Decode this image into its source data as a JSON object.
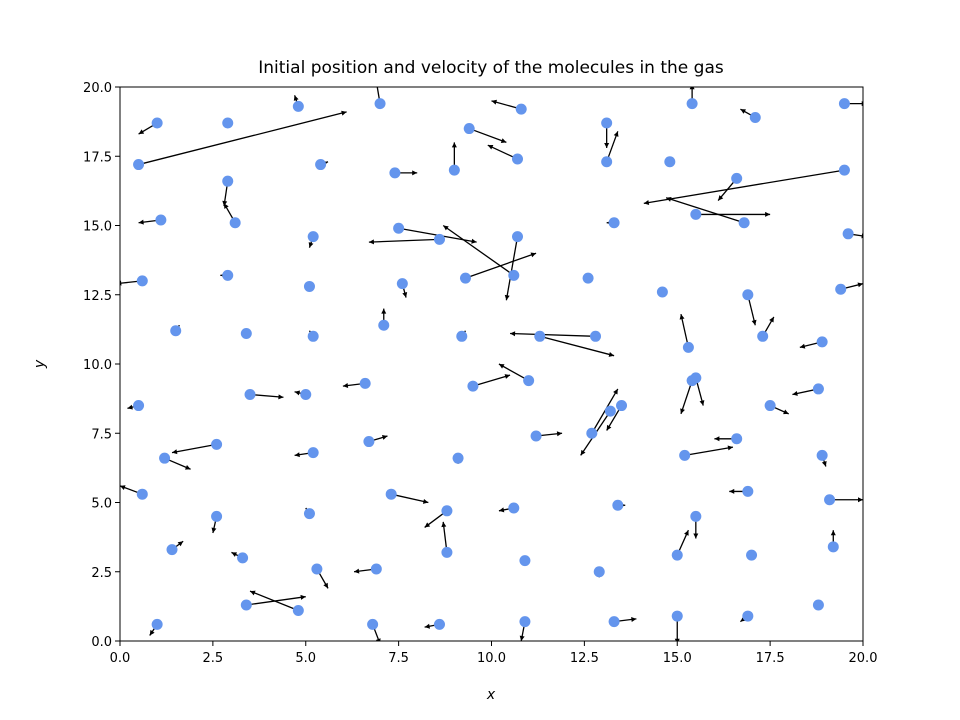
{
  "chart_data": {
    "type": "scatter",
    "title": "Initial position and velocity of the molecules in the gas",
    "xlabel": "x",
    "ylabel": "y",
    "xlim": [
      0,
      20
    ],
    "ylim": [
      0,
      20
    ],
    "xticks": [
      "0.0",
      "2.5",
      "5.0",
      "7.5",
      "10.0",
      "12.5",
      "15.0",
      "17.5",
      "20.0"
    ],
    "yticks": [
      "0.0",
      "2.5",
      "5.0",
      "7.5",
      "10.0",
      "12.5",
      "15.0",
      "17.5",
      "20.0"
    ],
    "grid": false,
    "point_color": "#6495ED",
    "arrow_color": "#000000",
    "points": [
      {
        "x": 1.0,
        "y": 18.7,
        "dx": -0.5,
        "dy": -0.4
      },
      {
        "x": 0.5,
        "y": 17.2,
        "dx": 5.6,
        "dy": 1.9
      },
      {
        "x": 2.9,
        "y": 18.7,
        "dx": -0.1,
        "dy": 0.1
      },
      {
        "x": 4.8,
        "y": 19.3,
        "dx": -0.1,
        "dy": 0.4
      },
      {
        "x": 7.0,
        "y": 19.4,
        "dx": -0.1,
        "dy": 0.8
      },
      {
        "x": 10.8,
        "y": 19.2,
        "dx": -0.8,
        "dy": 0.3
      },
      {
        "x": 13.1,
        "y": 18.7,
        "dx": 0.0,
        "dy": -0.9
      },
      {
        "x": 15.4,
        "y": 19.4,
        "dx": 0.0,
        "dy": 0.7
      },
      {
        "x": 17.1,
        "y": 18.9,
        "dx": -0.4,
        "dy": 0.3
      },
      {
        "x": 19.5,
        "y": 19.4,
        "dx": 0.6,
        "dy": 0.0
      },
      {
        "x": 5.4,
        "y": 17.2,
        "dx": 0.2,
        "dy": 0.1
      },
      {
        "x": 7.4,
        "y": 16.9,
        "dx": 0.6,
        "dy": 0.0
      },
      {
        "x": 9.0,
        "y": 17.0,
        "dx": 0.0,
        "dy": 1.0
      },
      {
        "x": 9.4,
        "y": 18.5,
        "dx": 1.0,
        "dy": -0.5
      },
      {
        "x": 10.7,
        "y": 17.4,
        "dx": -0.8,
        "dy": 0.5
      },
      {
        "x": 13.1,
        "y": 17.3,
        "dx": 0.3,
        "dy": 1.1
      },
      {
        "x": 14.8,
        "y": 17.3,
        "dx": -0.1,
        "dy": 0.1
      },
      {
        "x": 16.6,
        "y": 16.7,
        "dx": -0.5,
        "dy": -0.8
      },
      {
        "x": 19.5,
        "y": 17.0,
        "dx": -5.4,
        "dy": -1.2
      },
      {
        "x": 2.9,
        "y": 16.6,
        "dx": -0.1,
        "dy": -0.9
      },
      {
        "x": 3.1,
        "y": 15.1,
        "dx": -0.3,
        "dy": 0.7
      },
      {
        "x": 1.1,
        "y": 15.2,
        "dx": -0.6,
        "dy": -0.1
      },
      {
        "x": 5.2,
        "y": 14.6,
        "dx": -0.1,
        "dy": -0.4
      },
      {
        "x": 7.5,
        "y": 14.9,
        "dx": 2.1,
        "dy": -0.5
      },
      {
        "x": 8.6,
        "y": 14.5,
        "dx": -1.9,
        "dy": -0.1
      },
      {
        "x": 10.7,
        "y": 14.6,
        "dx": -0.3,
        "dy": -2.3
      },
      {
        "x": 10.6,
        "y": 13.2,
        "dx": -1.9,
        "dy": 1.8
      },
      {
        "x": 9.3,
        "y": 13.1,
        "dx": 1.9,
        "dy": 0.9
      },
      {
        "x": 13.3,
        "y": 15.1,
        "dx": -0.2,
        "dy": 0.0
      },
      {
        "x": 15.5,
        "y": 15.4,
        "dx": 2.0,
        "dy": 0.0
      },
      {
        "x": 16.8,
        "y": 15.1,
        "dx": -2.1,
        "dy": 0.9
      },
      {
        "x": 19.6,
        "y": 14.7,
        "dx": 0.5,
        "dy": -0.1
      },
      {
        "x": 0.6,
        "y": 13.0,
        "dx": -0.7,
        "dy": -0.1
      },
      {
        "x": 2.9,
        "y": 13.2,
        "dx": -0.2,
        "dy": 0.0
      },
      {
        "x": 5.1,
        "y": 12.8,
        "dx": -0.1,
        "dy": 0.1
      },
      {
        "x": 7.6,
        "y": 12.9,
        "dx": 0.1,
        "dy": -0.5
      },
      {
        "x": 12.6,
        "y": 13.1,
        "dx": 0.1,
        "dy": 0.1
      },
      {
        "x": 14.6,
        "y": 12.6,
        "dx": -0.1,
        "dy": 0.1
      },
      {
        "x": 16.9,
        "y": 12.5,
        "dx": 0.2,
        "dy": -1.1
      },
      {
        "x": 19.4,
        "y": 12.7,
        "dx": 0.6,
        "dy": 0.2
      },
      {
        "x": 1.5,
        "y": 11.2,
        "dx": 0.1,
        "dy": 0.2
      },
      {
        "x": 3.4,
        "y": 11.1,
        "dx": 0.1,
        "dy": 0.1
      },
      {
        "x": 5.2,
        "y": 11.0,
        "dx": -0.1,
        "dy": 0.2
      },
      {
        "x": 7.1,
        "y": 11.4,
        "dx": 0.0,
        "dy": 0.6
      },
      {
        "x": 9.2,
        "y": 11.0,
        "dx": 0.1,
        "dy": 0.2
      },
      {
        "x": 11.3,
        "y": 11.0,
        "dx": 2.0,
        "dy": -0.7
      },
      {
        "x": 12.8,
        "y": 11.0,
        "dx": -2.3,
        "dy": 0.1
      },
      {
        "x": 15.3,
        "y": 10.6,
        "dx": -0.2,
        "dy": 1.2
      },
      {
        "x": 15.4,
        "y": 9.4,
        "dx": -0.3,
        "dy": -1.2
      },
      {
        "x": 17.3,
        "y": 11.0,
        "dx": 0.3,
        "dy": 0.7
      },
      {
        "x": 18.9,
        "y": 10.8,
        "dx": -0.6,
        "dy": -0.2
      },
      {
        "x": 0.5,
        "y": 8.5,
        "dx": -0.3,
        "dy": -0.1
      },
      {
        "x": 3.5,
        "y": 8.9,
        "dx": 0.9,
        "dy": -0.1
      },
      {
        "x": 5.0,
        "y": 8.9,
        "dx": -0.3,
        "dy": 0.1
      },
      {
        "x": 6.6,
        "y": 9.3,
        "dx": -0.6,
        "dy": -0.1
      },
      {
        "x": 9.5,
        "y": 9.2,
        "dx": 1.0,
        "dy": 0.4
      },
      {
        "x": 11.0,
        "y": 9.4,
        "dx": -0.8,
        "dy": 0.6
      },
      {
        "x": 13.5,
        "y": 8.5,
        "dx": -0.4,
        "dy": -0.9
      },
      {
        "x": 15.5,
        "y": 9.5,
        "dx": 0.2,
        "dy": -1.0
      },
      {
        "x": 17.5,
        "y": 8.5,
        "dx": 0.5,
        "dy": -0.3
      },
      {
        "x": 18.8,
        "y": 9.1,
        "dx": -0.7,
        "dy": -0.2
      },
      {
        "x": 2.6,
        "y": 7.1,
        "dx": -1.2,
        "dy": -0.3
      },
      {
        "x": 1.2,
        "y": 6.6,
        "dx": 0.7,
        "dy": -0.4
      },
      {
        "x": 5.2,
        "y": 6.8,
        "dx": -0.5,
        "dy": -0.1
      },
      {
        "x": 6.7,
        "y": 7.2,
        "dx": 0.5,
        "dy": 0.2
      },
      {
        "x": 9.1,
        "y": 6.6,
        "dx": 0.0,
        "dy": -0.2
      },
      {
        "x": 11.2,
        "y": 7.4,
        "dx": 0.7,
        "dy": 0.1
      },
      {
        "x": 12.7,
        "y": 7.5,
        "dx": 0.7,
        "dy": 1.6
      },
      {
        "x": 13.2,
        "y": 8.3,
        "dx": -0.8,
        "dy": -1.6
      },
      {
        "x": 15.2,
        "y": 6.7,
        "dx": 1.3,
        "dy": 0.3
      },
      {
        "x": 16.6,
        "y": 7.3,
        "dx": -0.6,
        "dy": 0.0
      },
      {
        "x": 18.9,
        "y": 6.7,
        "dx": 0.1,
        "dy": -0.4
      },
      {
        "x": 0.6,
        "y": 5.3,
        "dx": -0.6,
        "dy": 0.3
      },
      {
        "x": 2.6,
        "y": 4.5,
        "dx": -0.1,
        "dy": -0.6
      },
      {
        "x": 5.1,
        "y": 4.6,
        "dx": -0.1,
        "dy": 0.2
      },
      {
        "x": 7.3,
        "y": 5.3,
        "dx": 1.0,
        "dy": -0.3
      },
      {
        "x": 8.8,
        "y": 4.7,
        "dx": -0.6,
        "dy": -0.6
      },
      {
        "x": 10.6,
        "y": 4.8,
        "dx": -0.4,
        "dy": -0.1
      },
      {
        "x": 13.4,
        "y": 4.9,
        "dx": 0.2,
        "dy": 0.0
      },
      {
        "x": 16.9,
        "y": 5.4,
        "dx": -0.5,
        "dy": 0.0
      },
      {
        "x": 19.1,
        "y": 5.1,
        "dx": 0.9,
        "dy": 0.0
      },
      {
        "x": 1.4,
        "y": 3.3,
        "dx": 0.3,
        "dy": 0.3
      },
      {
        "x": 3.3,
        "y": 3.0,
        "dx": -0.3,
        "dy": 0.2
      },
      {
        "x": 5.3,
        "y": 2.6,
        "dx": 0.3,
        "dy": -0.7
      },
      {
        "x": 6.9,
        "y": 2.6,
        "dx": -0.6,
        "dy": -0.1
      },
      {
        "x": 8.8,
        "y": 3.2,
        "dx": -0.1,
        "dy": 1.1
      },
      {
        "x": 10.9,
        "y": 2.9,
        "dx": 0.0,
        "dy": -0.1
      },
      {
        "x": 12.9,
        "y": 2.5,
        "dx": 0.0,
        "dy": -0.2
      },
      {
        "x": 15.0,
        "y": 3.1,
        "dx": 0.3,
        "dy": 0.9
      },
      {
        "x": 15.5,
        "y": 4.5,
        "dx": 0.0,
        "dy": -0.8
      },
      {
        "x": 17.0,
        "y": 3.1,
        "dx": -0.1,
        "dy": 0.1
      },
      {
        "x": 19.2,
        "y": 3.4,
        "dx": 0.0,
        "dy": 0.6
      },
      {
        "x": 1.0,
        "y": 0.6,
        "dx": -0.2,
        "dy": -0.4
      },
      {
        "x": 3.4,
        "y": 1.3,
        "dx": 1.6,
        "dy": 0.3
      },
      {
        "x": 4.8,
        "y": 1.1,
        "dx": -1.3,
        "dy": 0.7
      },
      {
        "x": 6.8,
        "y": 0.6,
        "dx": 0.2,
        "dy": -0.7
      },
      {
        "x": 8.6,
        "y": 0.6,
        "dx": -0.4,
        "dy": -0.1
      },
      {
        "x": 10.9,
        "y": 0.7,
        "dx": -0.1,
        "dy": -0.7
      },
      {
        "x": 13.3,
        "y": 0.7,
        "dx": 0.6,
        "dy": 0.1
      },
      {
        "x": 15.0,
        "y": 0.9,
        "dx": 0.0,
        "dy": -1.0
      },
      {
        "x": 16.9,
        "y": 0.9,
        "dx": -0.2,
        "dy": -0.2
      },
      {
        "x": 18.8,
        "y": 1.3,
        "dx": -0.1,
        "dy": 0.0
      }
    ]
  }
}
